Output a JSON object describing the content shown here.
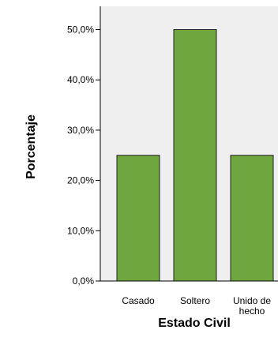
{
  "chart_data": {
    "type": "bar",
    "categories": [
      {
        "lines": [
          "Casado"
        ]
      },
      {
        "lines": [
          "Soltero"
        ]
      },
      {
        "lines": [
          "Unido de",
          "hecho"
        ]
      }
    ],
    "values": [
      25,
      50,
      25
    ],
    "ylabel": "Porcentaje",
    "xlabel": "Estado Civil",
    "ylim": [
      0,
      55
    ],
    "yticks": [
      0,
      10,
      20,
      30,
      40,
      50
    ],
    "ytick_labels": [
      "0,0%",
      "10,0%",
      "20,0%",
      "30,0%",
      "40,0%",
      "50,0%"
    ],
    "grid": false,
    "colors": {
      "plot_background": "#efefef",
      "bar_fill": "#70a640",
      "bar_stroke": "#1f1f1f",
      "axis": "#000000"
    }
  }
}
